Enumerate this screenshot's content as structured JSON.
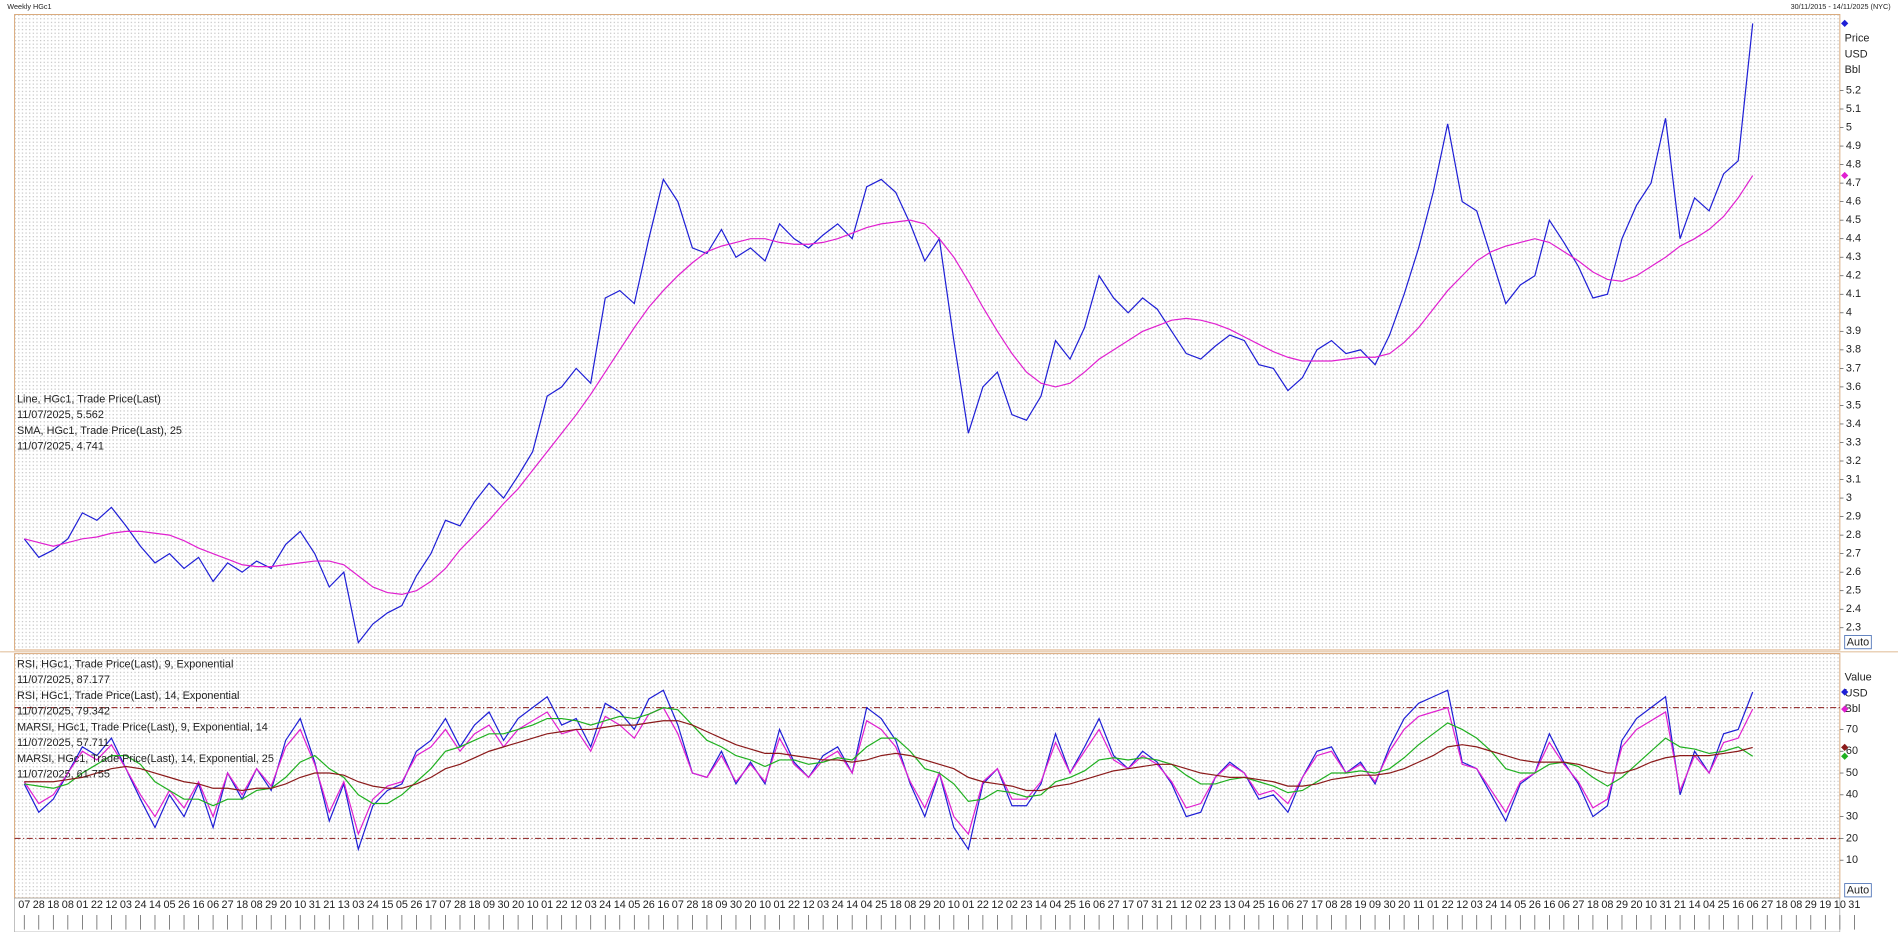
{
  "header": {
    "title": "Weekly HGc1",
    "range": "30/11/2015 - 14/11/2025 (NYC)"
  },
  "auto_button": "Auto",
  "chart_data": [
    {
      "type": "line",
      "categories": [
        "07",
        "28",
        "18",
        "08",
        "01",
        "22",
        "12",
        "03",
        "24",
        "14",
        "05",
        "26",
        "16",
        "06",
        "27",
        "18",
        "08",
        "29",
        "20",
        "10",
        "31",
        "21",
        "13",
        "03",
        "24",
        "15",
        "05",
        "26",
        "17",
        "07",
        "28",
        "18",
        "09",
        "30",
        "20",
        "10",
        "01",
        "22",
        "12",
        "03",
        "24",
        "14",
        "05",
        "26",
        "16",
        "07",
        "28",
        "18",
        "09",
        "30",
        "20",
        "10",
        "01",
        "22",
        "12",
        "03",
        "24",
        "14",
        "04",
        "25",
        "18",
        "08",
        "29",
        "20",
        "10",
        "01",
        "22",
        "12",
        "02",
        "23",
        "14",
        "04",
        "25",
        "16",
        "06",
        "27",
        "17",
        "07",
        "31",
        "21",
        "12",
        "02",
        "23",
        "13",
        "04",
        "25",
        "16",
        "06",
        "27",
        "17",
        "08",
        "28",
        "19",
        "09",
        "30",
        "20",
        "11",
        "01",
        "22",
        "12",
        "03",
        "24",
        "14",
        "05",
        "26",
        "16",
        "06",
        "27",
        "18",
        "08",
        "29",
        "20",
        "10",
        "31",
        "21",
        "14",
        "04",
        "25",
        "16",
        "06",
        "27",
        "18",
        "08",
        "29",
        "19",
        "10",
        "31"
      ],
      "axis_units": [
        "Price",
        "USD",
        "Bbl"
      ],
      "ylim": [
        2.18,
        5.61
      ],
      "yticks": [
        2.3,
        2.4,
        2.5,
        2.6,
        2.7,
        2.8,
        2.9,
        3,
        3.1,
        3.2,
        3.3,
        3.4,
        3.5,
        3.6,
        3.7,
        3.8,
        3.9,
        4,
        4.1,
        4.2,
        4.3,
        4.4,
        4.5,
        4.6,
        4.7,
        4.8,
        4.9,
        5,
        5.1,
        5.2
      ],
      "grid": true,
      "series": [
        {
          "name": "Line, HGc1, Trade Price(Last)",
          "last_label": "11/07/2025, 5.562",
          "color": "#1f1fd6",
          "values": [
            2.78,
            2.68,
            2.72,
            2.78,
            2.92,
            2.88,
            2.95,
            2.85,
            2.74,
            2.65,
            2.7,
            2.62,
            2.68,
            2.55,
            2.65,
            2.6,
            2.66,
            2.62,
            2.75,
            2.82,
            2.7,
            2.52,
            2.6,
            2.22,
            2.32,
            2.38,
            2.42,
            2.58,
            2.7,
            2.88,
            2.85,
            2.98,
            3.08,
            3,
            3.12,
            3.25,
            3.55,
            3.6,
            3.7,
            3.62,
            4.08,
            4.12,
            4.05,
            4.4,
            4.72,
            4.6,
            4.35,
            4.32,
            4.45,
            4.3,
            4.35,
            4.28,
            4.48,
            4.4,
            4.35,
            4.42,
            4.48,
            4.4,
            4.68,
            4.72,
            4.65,
            4.48,
            4.28,
            4.4,
            3.85,
            3.35,
            3.6,
            3.68,
            3.45,
            3.42,
            3.55,
            3.85,
            3.75,
            3.92,
            4.2,
            4.08,
            4,
            4.08,
            4.02,
            3.9,
            3.78,
            3.75,
            3.82,
            3.88,
            3.85,
            3.72,
            3.7,
            3.58,
            3.65,
            3.8,
            3.85,
            3.78,
            3.8,
            3.72,
            3.88,
            4.1,
            4.35,
            4.65,
            5.02,
            4.6,
            4.55,
            4.3,
            4.05,
            4.15,
            4.2,
            4.5,
            4.38,
            4.25,
            4.08,
            4.1,
            4.4,
            4.58,
            4.7,
            5.05,
            4.4,
            4.62,
            4.55,
            4.75,
            4.82,
            5.562,
            null,
            null,
            null,
            null,
            null,
            null,
            null
          ]
        },
        {
          "name": "SMA, HGc1, Trade Price(Last),  25",
          "last_label": "11/07/2025, 4.741",
          "color": "#e020d0",
          "values": [
            2.78,
            2.76,
            2.74,
            2.76,
            2.78,
            2.79,
            2.81,
            2.82,
            2.82,
            2.81,
            2.8,
            2.77,
            2.73,
            2.7,
            2.67,
            2.64,
            2.63,
            2.63,
            2.64,
            2.65,
            2.66,
            2.66,
            2.64,
            2.58,
            2.52,
            2.49,
            2.48,
            2.5,
            2.55,
            2.62,
            2.72,
            2.8,
            2.88,
            2.97,
            3.05,
            3.15,
            3.25,
            3.35,
            3.45,
            3.56,
            3.68,
            3.8,
            3.92,
            4.03,
            4.12,
            4.2,
            4.27,
            4.33,
            4.36,
            4.38,
            4.4,
            4.4,
            4.38,
            4.37,
            4.37,
            4.38,
            4.4,
            4.43,
            4.46,
            4.48,
            4.49,
            4.5,
            4.48,
            4.4,
            4.3,
            4.17,
            4.03,
            3.9,
            3.78,
            3.68,
            3.62,
            3.6,
            3.62,
            3.68,
            3.75,
            3.8,
            3.85,
            3.9,
            3.93,
            3.96,
            3.97,
            3.96,
            3.94,
            3.91,
            3.87,
            3.83,
            3.79,
            3.76,
            3.74,
            3.74,
            3.74,
            3.75,
            3.76,
            3.76,
            3.78,
            3.84,
            3.92,
            4.02,
            4.12,
            4.2,
            4.28,
            4.33,
            4.36,
            4.38,
            4.4,
            4.38,
            4.33,
            4.28,
            4.22,
            4.18,
            4.17,
            4.2,
            4.25,
            4.3,
            4.36,
            4.4,
            4.45,
            4.52,
            4.62,
            4.741,
            null,
            null,
            null,
            null,
            null,
            null,
            null
          ]
        }
      ]
    },
    {
      "type": "line",
      "axis_units": [
        "Value",
        "USD",
        "Bbl"
      ],
      "ylim": [
        -7.4,
        104.8
      ],
      "yticks": [
        10,
        20,
        30,
        40,
        50,
        60,
        70
      ],
      "levels": [
        80,
        20
      ],
      "series": [
        {
          "name": "RSI, HGc1, Trade Price(Last),  9, Exponential",
          "last_label": "11/07/2025, 87.177",
          "color": "#1f1fd6",
          "values": [
            45,
            32,
            38,
            50,
            62,
            58,
            66,
            52,
            38,
            25,
            40,
            30,
            45,
            25,
            50,
            38,
            52,
            42,
            65,
            75,
            55,
            28,
            45,
            15,
            35,
            42,
            45,
            60,
            65,
            75,
            62,
            72,
            78,
            65,
            75,
            80,
            85,
            72,
            75,
            62,
            82,
            78,
            70,
            84,
            88,
            72,
            50,
            48,
            60,
            45,
            55,
            45,
            70,
            55,
            48,
            58,
            62,
            50,
            80,
            75,
            65,
            45,
            30,
            50,
            25,
            15,
            45,
            52,
            35,
            35,
            45,
            68,
            50,
            62,
            75,
            58,
            52,
            60,
            55,
            45,
            30,
            32,
            48,
            55,
            50,
            38,
            40,
            32,
            48,
            60,
            62,
            50,
            55,
            45,
            62,
            75,
            82,
            85,
            88,
            55,
            52,
            40,
            28,
            45,
            50,
            68,
            55,
            45,
            30,
            35,
            65,
            75,
            80,
            85,
            40,
            60,
            50,
            68,
            70,
            87.177,
            null,
            null,
            null,
            null,
            null,
            null,
            null
          ]
        },
        {
          "name": "RSI, HGc1, Trade Price(Last),  14, Exponential",
          "last_label": "11/07/2025, 79.342",
          "color": "#e020d0",
          "values": [
            46,
            36,
            40,
            50,
            60,
            56,
            63,
            52,
            40,
            30,
            42,
            34,
            46,
            30,
            50,
            40,
            52,
            44,
            62,
            70,
            54,
            32,
            46,
            22,
            38,
            44,
            46,
            58,
            62,
            70,
            60,
            68,
            72,
            62,
            70,
            74,
            78,
            68,
            70,
            60,
            76,
            72,
            66,
            77,
            80,
            68,
            50,
            48,
            58,
            46,
            54,
            46,
            66,
            54,
            48,
            56,
            60,
            50,
            74,
            70,
            62,
            46,
            34,
            50,
            30,
            22,
            46,
            52,
            38,
            38,
            46,
            64,
            50,
            60,
            70,
            56,
            52,
            58,
            54,
            46,
            34,
            36,
            48,
            54,
            50,
            40,
            42,
            36,
            48,
            58,
            60,
            50,
            54,
            46,
            60,
            70,
            76,
            78,
            80,
            54,
            52,
            42,
            32,
            46,
            50,
            64,
            54,
            46,
            34,
            38,
            62,
            70,
            74,
            78,
            42,
            58,
            50,
            64,
            66,
            79.342,
            null,
            null,
            null,
            null,
            null,
            null,
            null
          ]
        },
        {
          "name": "MARSI, HGc1, Trade Price(Last),  9, Exponential, 14",
          "last_label": "11/07/2025, 57.711",
          "color": "#20b020",
          "values": [
            45,
            44,
            43,
            45,
            50,
            54,
            58,
            58,
            54,
            46,
            42,
            38,
            38,
            35,
            38,
            38,
            42,
            43,
            48,
            55,
            58,
            52,
            48,
            40,
            36,
            36,
            40,
            46,
            52,
            60,
            62,
            65,
            68,
            68,
            70,
            72,
            75,
            75,
            74,
            72,
            74,
            76,
            75,
            77,
            80,
            79,
            72,
            65,
            62,
            58,
            56,
            53,
            56,
            56,
            54,
            55,
            57,
            56,
            62,
            66,
            66,
            60,
            52,
            50,
            45,
            37,
            38,
            42,
            41,
            39,
            40,
            46,
            48,
            51,
            56,
            57,
            56,
            57,
            56,
            54,
            49,
            45,
            45,
            47,
            48,
            46,
            44,
            41,
            42,
            46,
            50,
            50,
            51,
            50,
            52,
            57,
            63,
            68,
            73,
            70,
            66,
            60,
            52,
            50,
            50,
            54,
            55,
            53,
            48,
            44,
            48,
            54,
            60,
            66,
            62,
            61,
            59,
            60,
            62,
            57.711,
            null,
            null,
            null,
            null,
            null,
            null,
            null
          ]
        },
        {
          "name": "MARSI, HGc1, Trade Price(Last),  14, Exponential, 25",
          "last_label": "11/07/2025, 61.755",
          "color": "#8b1a1a",
          "values": [
            46,
            46,
            46,
            47,
            48,
            50,
            52,
            53,
            52,
            50,
            48,
            46,
            45,
            43,
            43,
            42,
            43,
            43,
            45,
            48,
            50,
            50,
            49,
            46,
            44,
            43,
            43,
            45,
            48,
            52,
            54,
            57,
            60,
            62,
            64,
            66,
            68,
            69,
            70,
            70,
            71,
            72,
            72,
            73,
            74,
            74,
            72,
            69,
            66,
            63,
            61,
            59,
            59,
            58,
            57,
            56,
            56,
            55,
            56,
            58,
            59,
            58,
            56,
            54,
            52,
            48,
            46,
            45,
            44,
            42,
            42,
            44,
            45,
            47,
            49,
            51,
            52,
            53,
            54,
            54,
            52,
            50,
            49,
            48,
            48,
            47,
            46,
            44,
            44,
            45,
            47,
            48,
            49,
            49,
            50,
            52,
            55,
            58,
            62,
            63,
            62,
            60,
            58,
            56,
            55,
            55,
            55,
            54,
            52,
            50,
            50,
            52,
            55,
            57,
            58,
            58,
            58,
            59,
            60,
            61.755,
            null,
            null,
            null,
            null,
            null,
            null,
            null
          ]
        }
      ]
    }
  ]
}
